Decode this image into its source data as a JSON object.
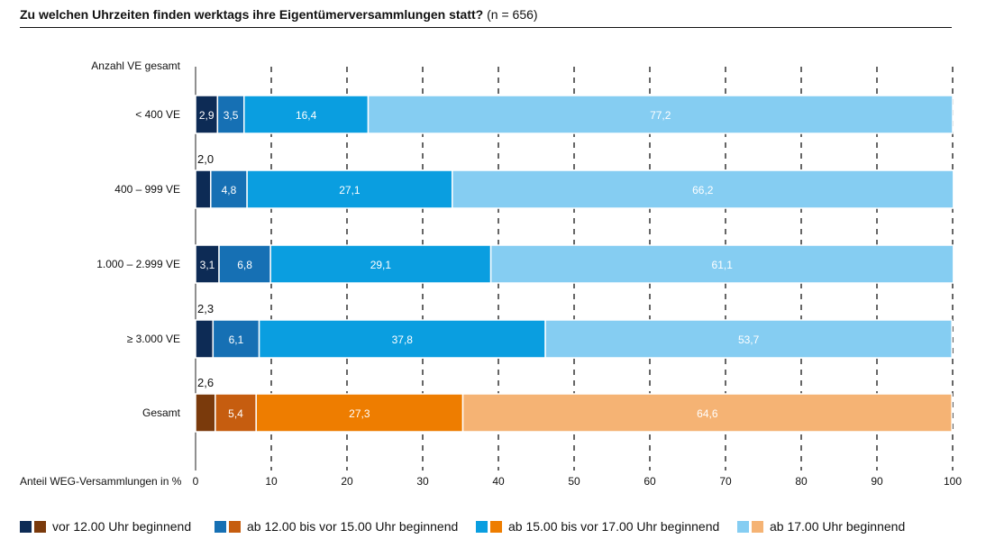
{
  "header": {
    "title_bold": "Zu welchen Uhrzeiten finden werktags ihre Eigentümerversammlungen statt?",
    "title_note": "(n = 656)"
  },
  "chart_data": {
    "type": "bar",
    "orientation": "horizontal",
    "stacked": true,
    "y_axis_title": "Anzahl VE gesamt",
    "xlabel": "Anteil WEG-Versammlungen in %",
    "xlim": [
      0,
      100
    ],
    "xticks": [
      "0",
      "10",
      "20",
      "30",
      "40",
      "50",
      "60",
      "70",
      "80",
      "90",
      "100"
    ],
    "grid": "vertical dashed",
    "categories": [
      "< 400 VE",
      "400 – 999 VE",
      "1.000 – 2.999 VE",
      "≥ 3.000 VE",
      "Gesamt"
    ],
    "series": [
      {
        "name": "vor 12.00 Uhr beginnend",
        "values": [
          2.9,
          2.0,
          3.1,
          2.3,
          2.6
        ],
        "labels": [
          "2,9",
          "2,0",
          "3,1",
          "2,3",
          "2,6"
        ]
      },
      {
        "name": "ab 12.00 bis vor 15.00 Uhr beginnend",
        "values": [
          3.5,
          4.8,
          6.8,
          6.1,
          5.4
        ],
        "labels": [
          "3,5",
          "4,8",
          "6,8",
          "6,1",
          "5,4"
        ]
      },
      {
        "name": "ab 15.00 bis vor 17.00 Uhr beginnend",
        "values": [
          16.4,
          27.1,
          29.1,
          37.8,
          27.3
        ],
        "labels": [
          "16,4",
          "27,1",
          "29,1",
          "37,8",
          "27,3"
        ]
      },
      {
        "name": "ab 17.00 Uhr beginnend",
        "values": [
          77.2,
          66.2,
          61.1,
          53.7,
          64.6
        ],
        "labels": [
          "77,2",
          "66,2",
          "61,1",
          "53,7",
          "64,6"
        ]
      }
    ],
    "colors_blue": [
      "#0d2b55",
      "#1670b4",
      "#0a9ee0",
      "#85cdf2"
    ],
    "colors_orange": [
      "#7a3a0c",
      "#c65d0f",
      "#ee7d00",
      "#f5b374"
    ],
    "label_above_for_first_segment": [
      false,
      true,
      false,
      true,
      true
    ],
    "legend_position": "bottom"
  }
}
